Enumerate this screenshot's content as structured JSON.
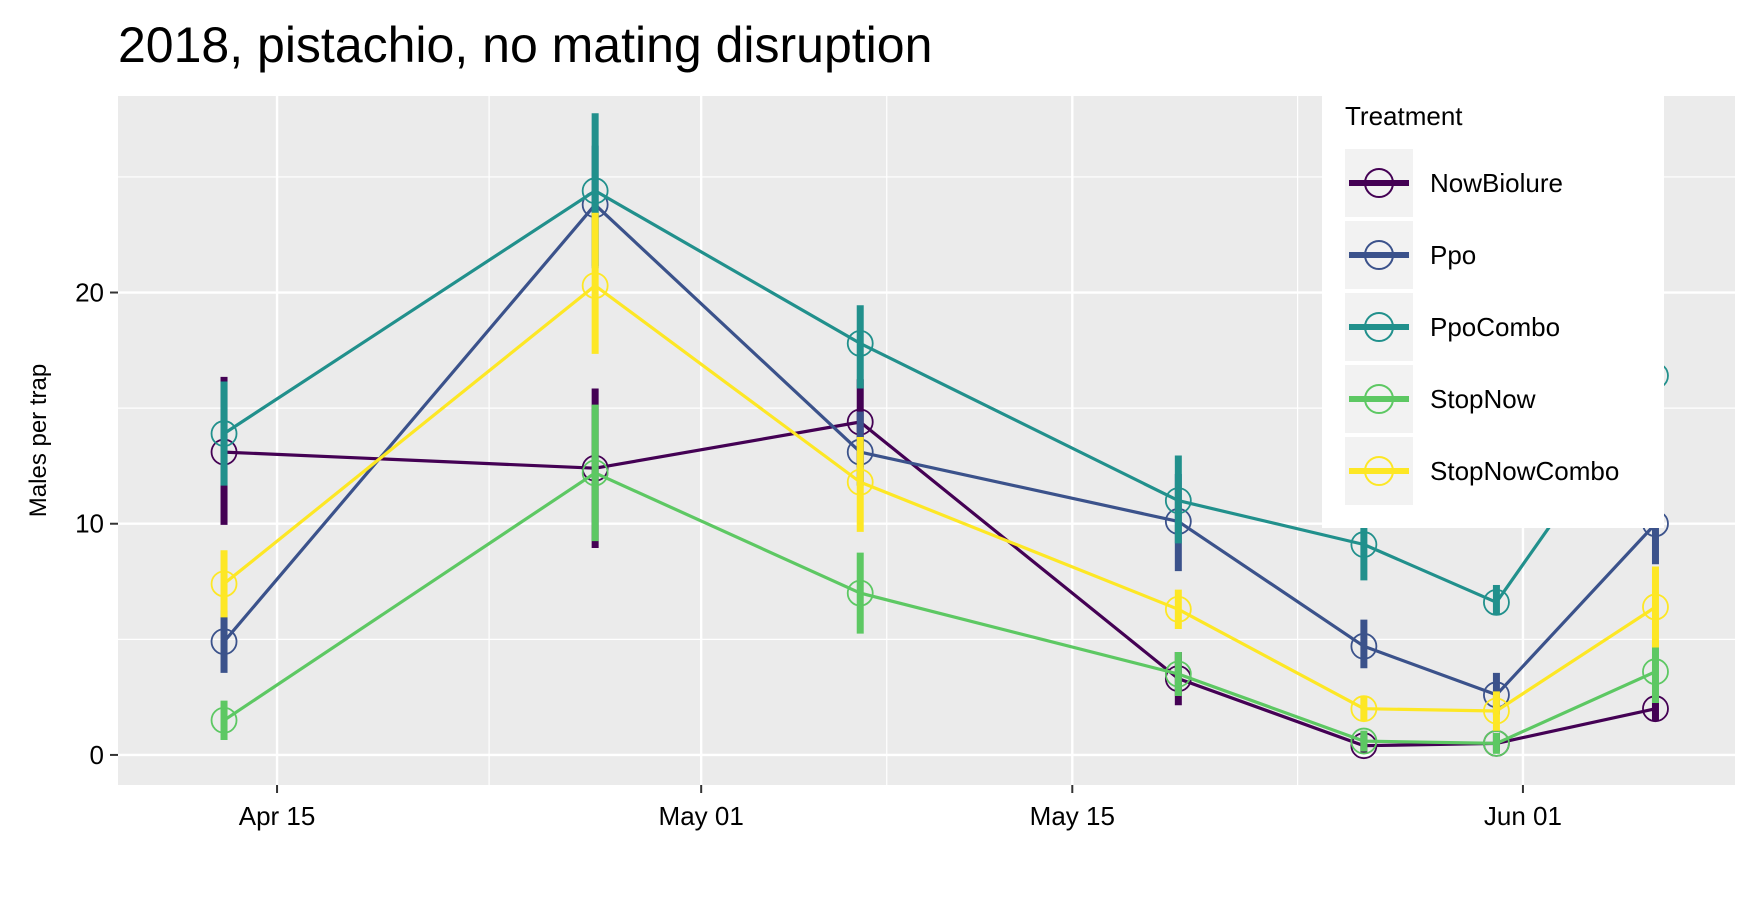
{
  "chart_data": {
    "type": "line",
    "title": "2018, pistachio, no mating disruption",
    "xlabel": "",
    "ylabel": "Males per trap",
    "x_axis": {
      "type": "date",
      "ticks": [
        "2018-04-15",
        "2018-05-01",
        "2018-05-15",
        "2018-06-01"
      ],
      "tick_labels": [
        "Apr 15",
        "May 01",
        "May 15",
        "Jun 01"
      ],
      "range": [
        "2018-04-09",
        "2018-06-09"
      ]
    },
    "y_axis": {
      "ticks": [
        0,
        10,
        20
      ],
      "range": [
        -1.3,
        28.5
      ]
    },
    "grid": true,
    "legend": {
      "title": "Treatment",
      "placement": "right-inside-top"
    },
    "series": [
      {
        "name": "NowBiolure",
        "color": "#440154",
        "x": [
          "2018-04-13",
          "2018-04-27",
          "2018-05-07",
          "2018-05-19",
          "2018-05-26",
          "2018-05-31",
          "2018-06-06"
        ],
        "y": [
          13.1,
          12.4,
          14.4,
          3.3,
          0.4,
          0.5,
          2.0
        ],
        "err": [
          [
            10.1,
            16.2
          ],
          [
            9.1,
            15.7
          ],
          [
            12.6,
            16.1
          ],
          [
            2.3,
            4.3
          ],
          [
            0.2,
            0.7
          ],
          [
            0.3,
            0.8
          ],
          [
            1.6,
            2.4
          ]
        ]
      },
      {
        "name": "Ppo",
        "color": "#3B528B",
        "x": [
          "2018-04-13",
          "2018-04-27",
          "2018-05-07",
          "2018-05-19",
          "2018-05-26",
          "2018-05-31",
          "2018-06-06"
        ],
        "y": [
          4.9,
          23.8,
          13.1,
          10.1,
          4.7,
          2.6,
          10.0
        ],
        "err": [
          [
            3.7,
            6.1
          ],
          [
            21.3,
            26.2
          ],
          [
            11.8,
            14.7
          ],
          [
            8.1,
            12.0
          ],
          [
            3.9,
            5.7
          ],
          [
            1.9,
            3.4
          ],
          [
            8.4,
            11.4
          ]
        ]
      },
      {
        "name": "PpoCombo",
        "color": "#21908C",
        "x": [
          "2018-04-13",
          "2018-04-27",
          "2018-05-07",
          "2018-05-19",
          "2018-05-26",
          "2018-05-31",
          "2018-06-06"
        ],
        "y": [
          13.9,
          24.4,
          17.8,
          11.0,
          9.1,
          6.6,
          16.4
        ],
        "err": [
          [
            11.8,
            16.0
          ],
          [
            21.2,
            27.6
          ],
          [
            16.0,
            19.3
          ],
          [
            9.3,
            12.8
          ],
          [
            7.7,
            10.6
          ],
          [
            6.2,
            7.2
          ],
          [
            14.5,
            18.0
          ]
        ]
      },
      {
        "name": "StopNow",
        "color": "#5DC863",
        "x": [
          "2018-04-13",
          "2018-04-27",
          "2018-05-07",
          "2018-05-19",
          "2018-05-26",
          "2018-05-31",
          "2018-06-06"
        ],
        "y": [
          1.5,
          12.2,
          7.0,
          3.5,
          0.6,
          0.5,
          3.6
        ],
        "err": [
          [
            0.8,
            2.2
          ],
          [
            9.4,
            15.0
          ],
          [
            5.4,
            8.6
          ],
          [
            2.7,
            4.3
          ],
          [
            0.3,
            0.9
          ],
          [
            0.2,
            0.8
          ],
          [
            2.4,
            4.8
          ]
        ]
      },
      {
        "name": "StopNowCombo",
        "color": "#FDE725",
        "x": [
          "2018-04-13",
          "2018-04-27",
          "2018-05-07",
          "2018-05-19",
          "2018-05-26",
          "2018-05-31",
          "2018-06-06"
        ],
        "y": [
          7.4,
          20.3,
          11.8,
          6.3,
          2.0,
          1.9,
          6.4
        ],
        "err": [
          [
            6.1,
            8.7
          ],
          [
            17.5,
            23.3
          ],
          [
            9.8,
            13.6
          ],
          [
            5.6,
            7.0
          ],
          [
            1.6,
            2.4
          ],
          [
            1.2,
            2.6
          ],
          [
            4.8,
            8.0
          ]
        ]
      }
    ]
  },
  "colors": {
    "panel_background": "#EBEBEB",
    "grid": "#FFFFFF",
    "legend_key_background": "#F2F2F2"
  }
}
